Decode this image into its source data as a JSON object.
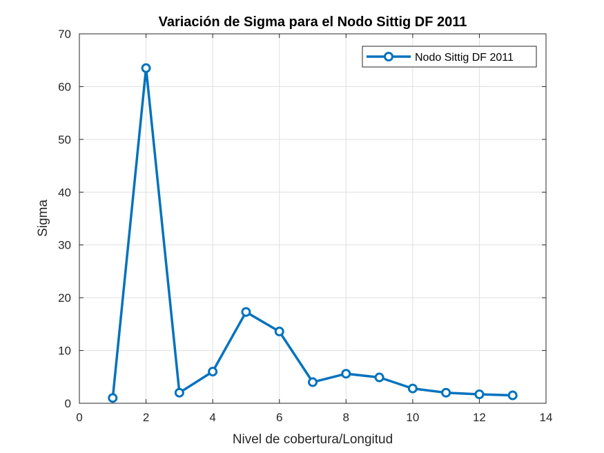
{
  "chart_data": {
    "type": "line",
    "title": "Variación de Sigma para el Nodo Sittig DF 2011",
    "xlabel": "Nivel de cobertura/Longitud",
    "ylabel": "Sigma",
    "xlim": [
      0,
      14
    ],
    "ylim": [
      0,
      70
    ],
    "xticks": [
      0,
      2,
      4,
      6,
      8,
      10,
      12,
      14
    ],
    "yticks": [
      0,
      10,
      20,
      30,
      40,
      50,
      60,
      70
    ],
    "grid": true,
    "legend_position": "top-right",
    "series": [
      {
        "name": "Nodo Sittig DF 2011",
        "color": "#0072BD",
        "marker": "circle",
        "x": [
          1,
          2,
          3,
          4,
          5,
          6,
          7,
          8,
          9,
          10,
          11,
          12,
          13
        ],
        "y": [
          1.0,
          63.5,
          2.0,
          6.0,
          17.3,
          13.6,
          4.0,
          5.6,
          4.9,
          2.8,
          2.0,
          1.7,
          1.5
        ]
      }
    ]
  }
}
